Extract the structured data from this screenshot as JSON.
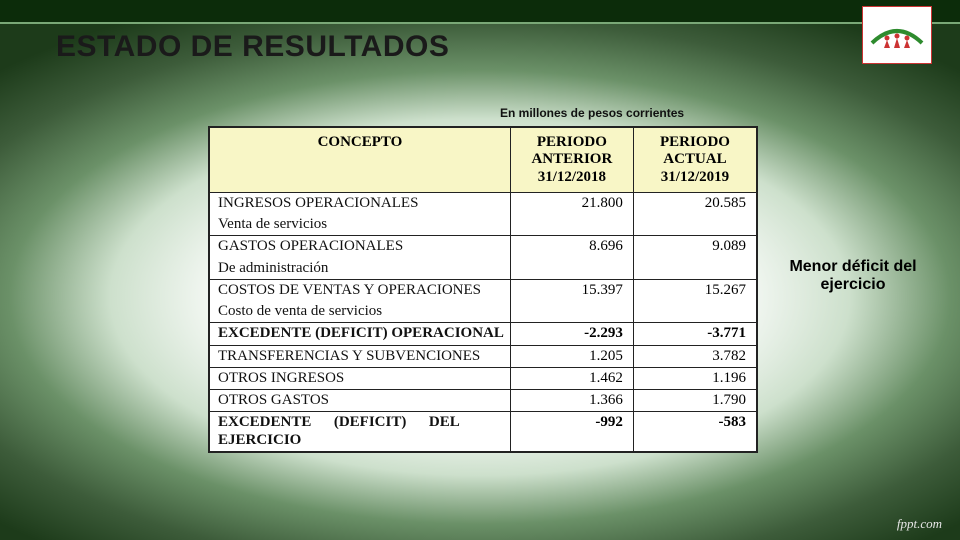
{
  "title": "ESTADO DE RESULTADOS",
  "caption": "En millones de pesos corrientes",
  "annotation": "Menor déficit del ejercicio",
  "footer": "fppt.com",
  "colors": {
    "header_bg": "#f8f6c6",
    "border": "#222222",
    "topbar": "#0c2c0a",
    "topbar_line": "#7aa877",
    "logo_border": "#cc3333",
    "logo_arc": "#2e8b2e",
    "logo_people": "#cc3333"
  },
  "table": {
    "columns": [
      {
        "key": "concepto",
        "label": "CONCEPTO"
      },
      {
        "key": "anterior",
        "label": "PERIODO ANTERIOR 31/12/2018"
      },
      {
        "key": "actual",
        "label": "PERIODO ACTUAL 31/12/2019"
      }
    ],
    "rows": [
      {
        "label": "INGRESOS OPERACIONALES",
        "subLabel": "Venta de servicios",
        "prev": "21.800",
        "curr": "20.585",
        "bold": false
      },
      {
        "label": "GASTOS OPERACIONALES",
        "subLabel": "De administración",
        "prev": "8.696",
        "curr": "9.089",
        "bold": false
      },
      {
        "label": "COSTOS DE VENTAS Y OPERACIONES",
        "subLabel": "Costo de venta de servicios",
        "prev": "15.397",
        "curr": "15.267",
        "bold": false
      },
      {
        "label": "EXCEDENTE (DEFICIT) OPERACIONAL",
        "prev": "-2.293",
        "curr": "-3.771",
        "bold": true
      },
      {
        "label": "TRANSFERENCIAS Y SUBVENCIONES",
        "prev": "1.205",
        "curr": "3.782",
        "bold": false
      },
      {
        "label": "OTROS INGRESOS",
        "prev": "1.462",
        "curr": "1.196",
        "bold": false
      },
      {
        "label": "OTROS GASTOS",
        "prev": "1.366",
        "curr": "1.790",
        "bold": false
      },
      {
        "label": "EXCEDENTE      (DEFICIT)      DEL EJERCICIO",
        "prev": "-992",
        "curr": "-583",
        "bold": true
      }
    ]
  }
}
